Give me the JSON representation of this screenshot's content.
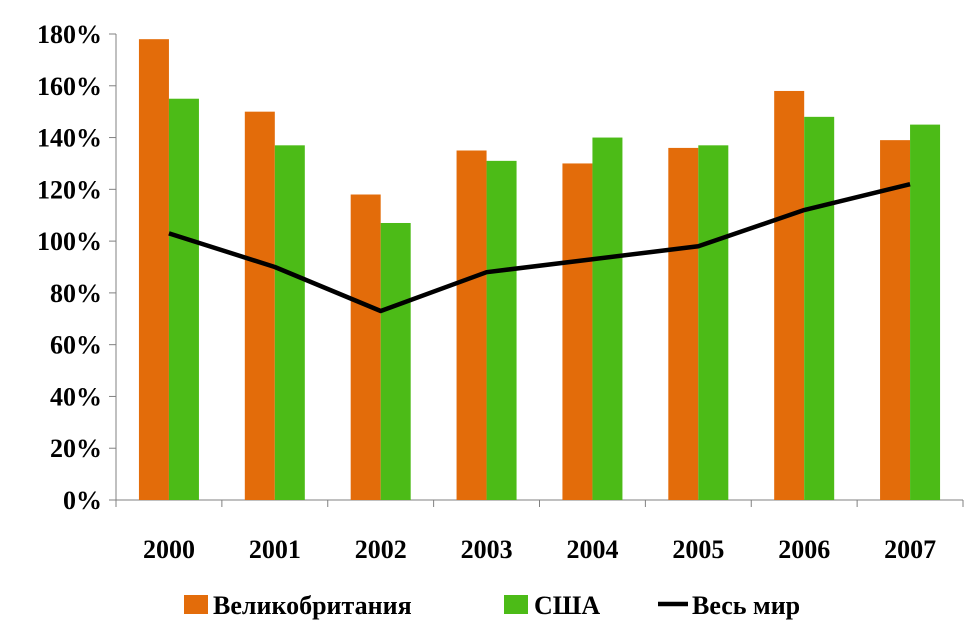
{
  "chart_data": {
    "type": "bar",
    "categories": [
      "2000",
      "2001",
      "2002",
      "2003",
      "2004",
      "2005",
      "2006",
      "2007"
    ],
    "series": [
      {
        "name": "Великобритания",
        "type": "bar",
        "color": "#E36C0A",
        "values": [
          178,
          150,
          118,
          135,
          130,
          136,
          158,
          139
        ]
      },
      {
        "name": "США",
        "type": "bar",
        "color": "#4CBB17",
        "values": [
          155,
          137,
          107,
          131,
          140,
          137,
          148,
          145
        ]
      },
      {
        "name": "Весь мир",
        "type": "line",
        "color": "#000000",
        "values": [
          103,
          90,
          73,
          88,
          93,
          98,
          112,
          122
        ]
      }
    ],
    "y_ticks": [
      "0%",
      "20%",
      "40%",
      "60%",
      "80%",
      "100%",
      "120%",
      "140%",
      "160%",
      "180%"
    ],
    "ylim": [
      0,
      180
    ],
    "y_unit": "%",
    "grid": false,
    "legend_position": "bottom"
  }
}
